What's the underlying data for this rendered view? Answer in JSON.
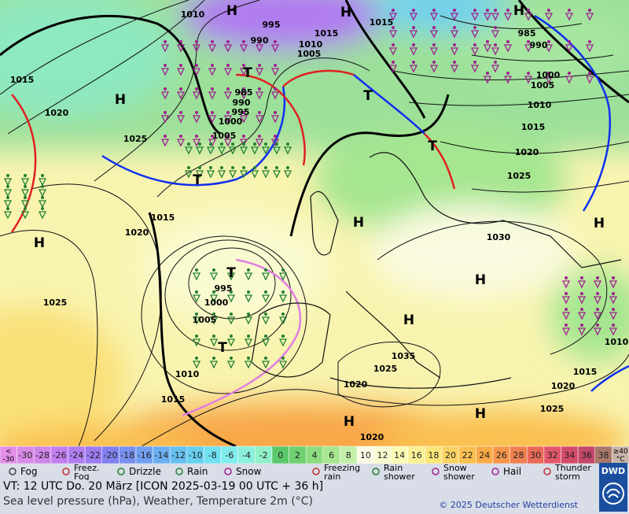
{
  "map": {
    "labels": [
      "H",
      "H",
      "H",
      "1010",
      "995",
      "1015",
      "1015",
      "990",
      "1010",
      "1005",
      "985",
      "990",
      "1015",
      "1020",
      "H",
      "T",
      "985",
      "990",
      "995",
      "1000",
      "1005",
      "1025",
      "T",
      "1000",
      "1005",
      "1010",
      "1015",
      "1020",
      "T",
      "1025",
      "T",
      "1015",
      "1020",
      "H",
      "1030",
      "H",
      "H",
      "T",
      "995",
      "1000",
      "H",
      "1025",
      "1005",
      "H",
      "T",
      "1035",
      "1025",
      "1010",
      "1015",
      "1020",
      "1020",
      "1015",
      "1025",
      "H",
      "H",
      "1020",
      "1010"
    ]
  },
  "scale": [
    {
      "top": "<",
      "bottom": "-30",
      "color": "#e28fe6"
    },
    {
      "label": "-30",
      "color": "#d98be8"
    },
    {
      "label": "-28",
      "color": "#cf86ea"
    },
    {
      "label": "-26",
      "color": "#c27ff0"
    },
    {
      "label": "-24",
      "color": "#b07cf0"
    },
    {
      "label": "-22",
      "color": "#9c7bf0"
    },
    {
      "label": "-20",
      "color": "#8080f0"
    },
    {
      "label": "-18",
      "color": "#7890f0"
    },
    {
      "label": "-16",
      "color": "#70a0f0"
    },
    {
      "label": "-14",
      "color": "#6ab0f0"
    },
    {
      "label": "-12",
      "color": "#66c0f0"
    },
    {
      "label": "-10",
      "color": "#66d0f0"
    },
    {
      "label": "-8",
      "color": "#70e0f0"
    },
    {
      "label": "-6",
      "color": "#80ecec"
    },
    {
      "label": "-4",
      "color": "#8cf0dc"
    },
    {
      "label": "-2",
      "color": "#90f0c8"
    },
    {
      "label": "0",
      "color": "#5cc86c"
    },
    {
      "label": "2",
      "color": "#70d070"
    },
    {
      "label": "4",
      "color": "#8cdc80"
    },
    {
      "label": "6",
      "color": "#a6e690"
    },
    {
      "label": "8",
      "color": "#c4f0a8"
    },
    {
      "label": "10",
      "color": "#fafae6"
    },
    {
      "label": "12",
      "color": "#fafad0"
    },
    {
      "label": "14",
      "color": "#fafab4"
    },
    {
      "label": "16",
      "color": "#faf096"
    },
    {
      "label": "18",
      "color": "#fae678"
    },
    {
      "label": "20",
      "color": "#fad264"
    },
    {
      "label": "22",
      "color": "#fac050"
    },
    {
      "label": "24",
      "color": "#f8aa46"
    },
    {
      "label": "26",
      "color": "#f6964a"
    },
    {
      "label": "28",
      "color": "#f08050"
    },
    {
      "label": "30",
      "color": "#ea6a58"
    },
    {
      "label": "32",
      "color": "#e2586a"
    },
    {
      "label": "34",
      "color": "#d44c6a"
    },
    {
      "label": "36",
      "color": "#c4486a"
    },
    {
      "label": "38",
      "color": "#a8786a"
    },
    {
      "top": "≥40",
      "bottom": "°C",
      "color": "#c8b4a8"
    }
  ],
  "legend": [
    {
      "label": "Fog"
    },
    {
      "top": "Freez.",
      "bottom": "Fog"
    },
    {
      "label": "Drizzle"
    },
    {
      "label": "Rain"
    },
    {
      "label": "Snow"
    },
    {
      "top": "Freezing",
      "bottom": "rain"
    },
    {
      "top": "Rain",
      "bottom": "shower"
    },
    {
      "top": "Snow",
      "bottom": "shower"
    },
    {
      "label": "Hail"
    },
    {
      "top": "Thunder",
      "bottom": "storm"
    }
  ],
  "footer": {
    "valid": "VT: 12 UTC Do.  20 März [ICON 2025-03-19  00 UTC + 36 h]",
    "description": "Sea level pressure (hPa), Weather, Temperature 2m (°C)",
    "copyright": "© 2025 Deutscher Wetterdienst",
    "logo": "DWD"
  }
}
